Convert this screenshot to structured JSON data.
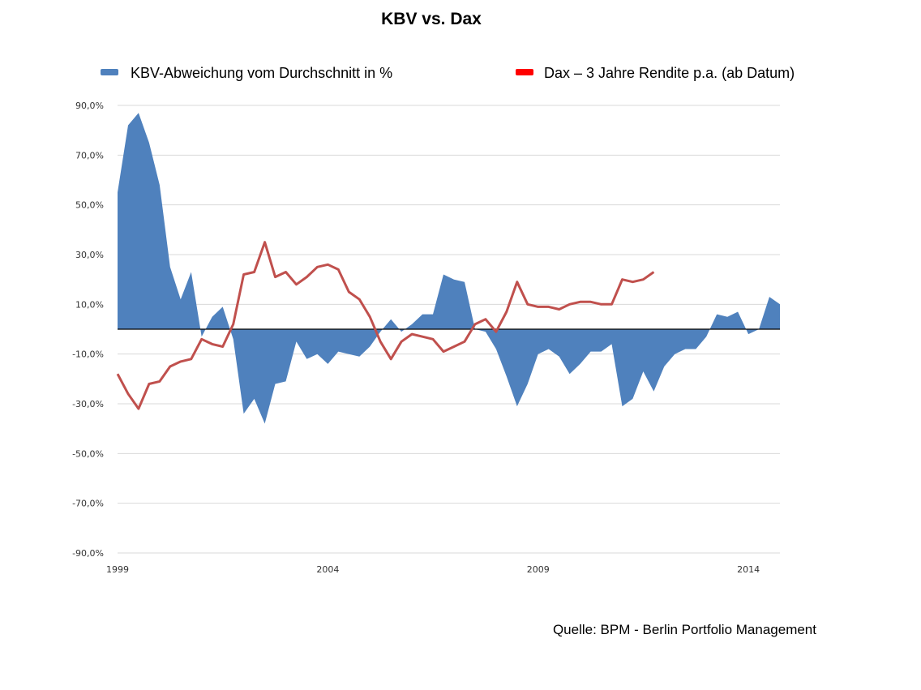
{
  "chart_data": {
    "type": "area",
    "title": "KBV vs. Dax",
    "source": "Quelle: BPM - Berlin Portfolio Management",
    "ylim": [
      -90,
      90
    ],
    "xlim": [
      1999,
      2014.75
    ],
    "y_ticks": [
      90,
      70,
      50,
      30,
      10,
      -10,
      -30,
      -50,
      -70,
      -90
    ],
    "y_tick_labels": [
      "90,0%",
      "70,0%",
      "50,0%",
      "30,0%",
      "10,0%",
      "-10,0%",
      "-30,0%",
      "-50,0%",
      "-70,0%",
      "-90,0%"
    ],
    "x_ticks": [
      1999,
      2004,
      2009,
      2014
    ],
    "x_tick_labels": [
      "1999",
      "2004",
      "2009",
      "2014"
    ],
    "legend_position": "top",
    "series": [
      {
        "name": "KBV-Abweichung vom Durchschnitt in %",
        "type": "area",
        "color": "#4f81bd",
        "x": [
          1999.0,
          1999.25,
          1999.5,
          1999.75,
          2000.0,
          2000.25,
          2000.5,
          2000.75,
          2001.0,
          2001.25,
          2001.5,
          2001.75,
          2002.0,
          2002.25,
          2002.5,
          2002.75,
          2003.0,
          2003.25,
          2003.5,
          2003.75,
          2004.0,
          2004.25,
          2004.5,
          2004.75,
          2005.0,
          2005.25,
          2005.5,
          2005.75,
          2006.0,
          2006.25,
          2006.5,
          2006.75,
          2007.0,
          2007.25,
          2007.5,
          2007.75,
          2008.0,
          2008.25,
          2008.5,
          2008.75,
          2009.0,
          2009.25,
          2009.5,
          2009.75,
          2010.0,
          2010.25,
          2010.5,
          2010.75,
          2011.0,
          2011.25,
          2011.5,
          2011.75,
          2012.0,
          2012.25,
          2012.5,
          2012.75,
          2013.0,
          2013.25,
          2013.5,
          2013.75,
          2014.0,
          2014.25,
          2014.5,
          2014.75
        ],
        "values": [
          55,
          82,
          87,
          75,
          58,
          25,
          12,
          23,
          -3,
          5,
          9,
          -4,
          -34,
          -28,
          -38,
          -22,
          -21,
          -5,
          -12,
          -10,
          -14,
          -9,
          -10,
          -11,
          -7,
          -1,
          4,
          -1,
          2,
          6,
          6,
          22,
          20,
          19,
          0,
          -1,
          -8,
          -19,
          -31,
          -22,
          -10,
          -8,
          -11,
          -18,
          -14,
          -9,
          -9,
          -6,
          -31,
          -28,
          -17,
          -25,
          -15,
          -10,
          -8,
          -8,
          -3,
          6,
          5,
          7,
          -2,
          0,
          13,
          10
        ]
      },
      {
        "name": "Dax – 3 Jahre Rendite p.a. (ab Datum)",
        "type": "line",
        "color": "#c0504d",
        "legend_color": "#ff0000",
        "x": [
          1999.0,
          1999.25,
          1999.5,
          1999.75,
          2000.0,
          2000.25,
          2000.5,
          2000.75,
          2001.0,
          2001.25,
          2001.5,
          2001.75,
          2002.0,
          2002.25,
          2002.5,
          2002.75,
          2003.0,
          2003.25,
          2003.5,
          2003.75,
          2004.0,
          2004.25,
          2004.5,
          2004.75,
          2005.0,
          2005.25,
          2005.5,
          2005.75,
          2006.0,
          2006.25,
          2006.5,
          2006.75,
          2007.0,
          2007.25,
          2007.5,
          2007.75,
          2008.0,
          2008.25,
          2008.5,
          2008.75,
          2009.0,
          2009.25,
          2009.5,
          2009.75,
          2010.0,
          2010.25,
          2010.5,
          2010.75,
          2011.0,
          2011.25,
          2011.5,
          2011.75
        ],
        "values": [
          -18,
          -26,
          -32,
          -22,
          -21,
          -15,
          -13,
          -12,
          -4,
          -6,
          -7,
          2,
          22,
          23,
          35,
          21,
          23,
          18,
          21,
          25,
          26,
          24,
          15,
          12,
          5,
          -5,
          -12,
          -5,
          -2,
          -3,
          -4,
          -9,
          -7,
          -5,
          2,
          4,
          -1,
          7,
          19,
          10,
          9,
          9,
          8,
          10,
          11,
          11,
          10,
          10,
          20,
          19,
          20,
          23
        ]
      }
    ]
  }
}
